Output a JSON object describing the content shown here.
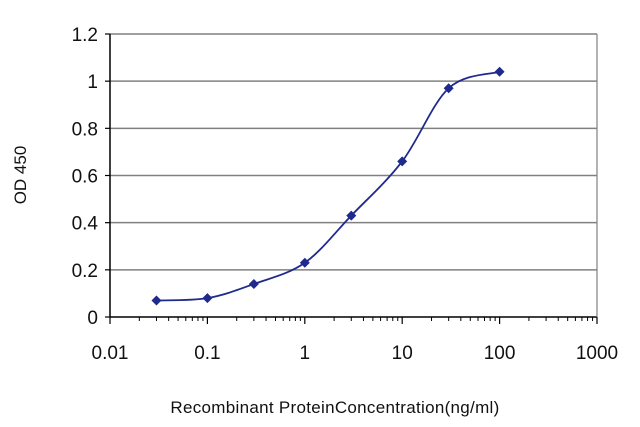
{
  "chart_data": {
    "type": "line",
    "title": "",
    "xlabel": "Recombinant ProteinConcentration(ng/ml)",
    "ylabel": "OD 450",
    "x_scale": "log",
    "xlim": [
      0.01,
      1000
    ],
    "ylim": [
      0,
      1.2
    ],
    "x_ticks": [
      "0.01",
      "0.1",
      "1",
      "10",
      "100",
      "1000"
    ],
    "y_ticks": [
      "0",
      "0.2",
      "0.4",
      "0.6",
      "0.8",
      "1",
      "1.2"
    ],
    "grid": "horizontal",
    "legend": "none",
    "series": [
      {
        "x": [
          0.03,
          0.1,
          0.3,
          1,
          3,
          10,
          30,
          100
        ],
        "y": [
          0.07,
          0.08,
          0.14,
          0.23,
          0.43,
          0.66,
          0.97,
          1.04
        ]
      }
    ],
    "colors": {
      "series": "#1f2a8c",
      "grid": "#808080",
      "axis": "#000000"
    }
  }
}
